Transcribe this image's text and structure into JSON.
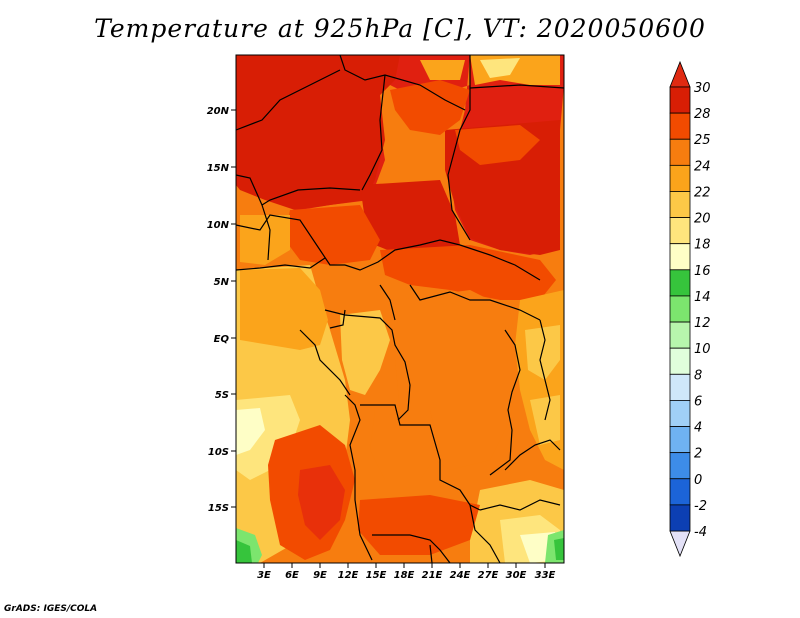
{
  "title": "Temperature at 925hPa [C], VT: 2020050600",
  "credit": "GrADS: IGES/COLA",
  "lat_ticks": [
    "20N",
    "15N",
    "10N",
    "5N",
    "EQ",
    "5S",
    "10S",
    "15S"
  ],
  "lon_ticks": [
    "3E",
    "6E",
    "9E",
    "12E",
    "15E",
    "18E",
    "21E",
    "24E",
    "27E",
    "30E",
    "33E"
  ],
  "colorbar": {
    "labels": [
      "30",
      "28",
      "25",
      "24",
      "22",
      "20",
      "18",
      "16",
      "14",
      "12",
      "10",
      "8",
      "6",
      "4",
      "2",
      "0",
      "-2",
      "-4"
    ],
    "colors": [
      "#d81e05",
      "#f24b00",
      "#f77d0f",
      "#fba41b",
      "#fcc847",
      "#fee57d",
      "#fefec6",
      "#36c43c",
      "#7ce56e",
      "#b7f6ad",
      "#e0fedb",
      "#cfe7f9",
      "#a0d0f7",
      "#6fb2f2",
      "#3d8ce8",
      "#1c64d8",
      "#0c3fb3",
      "#051e7a",
      "#0a0a55",
      "#e5e5f7"
    ],
    "top_color": "#e02a12",
    "bottom_color": "#e3e1f7"
  }
}
